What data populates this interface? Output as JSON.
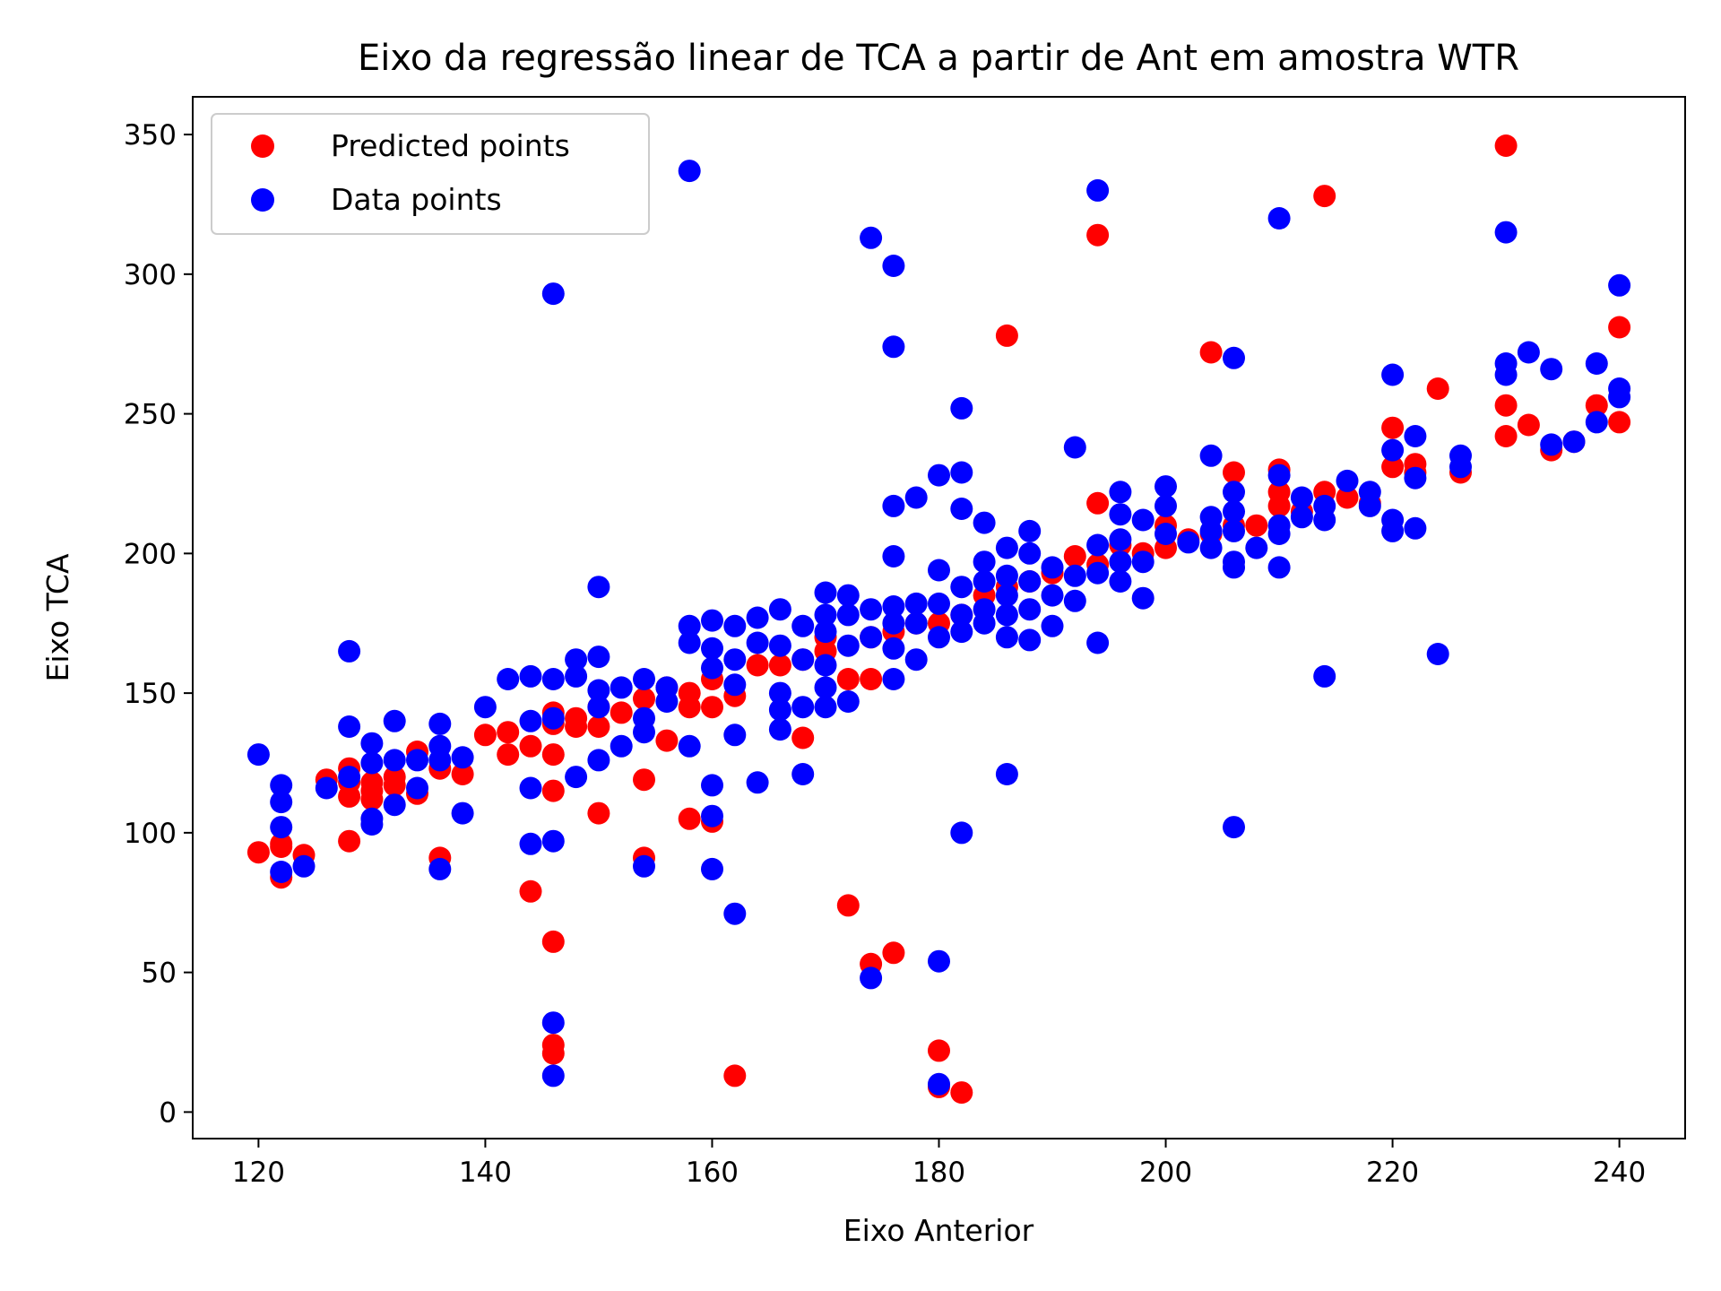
{
  "chart_data": {
    "type": "scatter",
    "title": "Eixo da regressão linear de TCA a partir de Ant em amostra WTR",
    "xlabel": "Eixo Anterior",
    "ylabel": "Eixo TCA",
    "xlim": [
      114.2,
      245.8
    ],
    "ylim": [
      -9.5,
      363.5
    ],
    "xticks": [
      120,
      140,
      160,
      180,
      200,
      220,
      240
    ],
    "yticks": [
      0,
      50,
      100,
      150,
      200,
      250,
      300,
      350
    ],
    "xtick_labels": [
      "120",
      "140",
      "160",
      "180",
      "200",
      "220",
      "240"
    ],
    "ytick_labels": [
      "0",
      "50",
      "100",
      "150",
      "200",
      "250",
      "300",
      "350"
    ],
    "grid": false,
    "legend": {
      "position": "top-left",
      "entries": [
        {
          "label": "Predicted points",
          "color": "#ff0000"
        },
        {
          "label": "Data points",
          "color": "#0000ff"
        }
      ]
    },
    "series": [
      {
        "name": "Predicted points",
        "color": "#ff0000",
        "points": [
          [
            120,
            93
          ],
          [
            122,
            96
          ],
          [
            122,
            95
          ],
          [
            122,
            84
          ],
          [
            124,
            92
          ],
          [
            126,
            119
          ],
          [
            128,
            97
          ],
          [
            128,
            113
          ],
          [
            128,
            118
          ],
          [
            128,
            123
          ],
          [
            130,
            115
          ],
          [
            130,
            112
          ],
          [
            130,
            118
          ],
          [
            132,
            120
          ],
          [
            132,
            117
          ],
          [
            134,
            114
          ],
          [
            134,
            129
          ],
          [
            136,
            91
          ],
          [
            136,
            123
          ],
          [
            138,
            121
          ],
          [
            140,
            135
          ],
          [
            142,
            128
          ],
          [
            142,
            136
          ],
          [
            144,
            79
          ],
          [
            144,
            131
          ],
          [
            146,
            61
          ],
          [
            146,
            24
          ],
          [
            146,
            21
          ],
          [
            146,
            115
          ],
          [
            146,
            128
          ],
          [
            146,
            143
          ],
          [
            146,
            139
          ],
          [
            148,
            141
          ],
          [
            148,
            138
          ],
          [
            150,
            107
          ],
          [
            150,
            138
          ],
          [
            150,
            145
          ],
          [
            152,
            143
          ],
          [
            154,
            91
          ],
          [
            154,
            119
          ],
          [
            154,
            148
          ],
          [
            156,
            133
          ],
          [
            156,
            152
          ],
          [
            158,
            105
          ],
          [
            158,
            150
          ],
          [
            158,
            145
          ],
          [
            160,
            104
          ],
          [
            160,
            145
          ],
          [
            160,
            155
          ],
          [
            162,
            13
          ],
          [
            162,
            149
          ],
          [
            164,
            160
          ],
          [
            166,
            160
          ],
          [
            168,
            134
          ],
          [
            168,
            162
          ],
          [
            170,
            170
          ],
          [
            170,
            165
          ],
          [
            172,
            74
          ],
          [
            172,
            155
          ],
          [
            174,
            53
          ],
          [
            174,
            155
          ],
          [
            174,
            170
          ],
          [
            176,
            57
          ],
          [
            176,
            172
          ],
          [
            178,
            175
          ],
          [
            180,
            22
          ],
          [
            180,
            9
          ],
          [
            180,
            175
          ],
          [
            182,
            7
          ],
          [
            182,
            178
          ],
          [
            184,
            185
          ],
          [
            186,
            278
          ],
          [
            186,
            188
          ],
          [
            188,
            190
          ],
          [
            190,
            193
          ],
          [
            192,
            199
          ],
          [
            194,
            314
          ],
          [
            194,
            218
          ],
          [
            194,
            196
          ],
          [
            196,
            203
          ],
          [
            198,
            200
          ],
          [
            200,
            202
          ],
          [
            200,
            210
          ],
          [
            202,
            205
          ],
          [
            204,
            272
          ],
          [
            204,
            207
          ],
          [
            206,
            229
          ],
          [
            206,
            210
          ],
          [
            208,
            210
          ],
          [
            210,
            230
          ],
          [
            210,
            222
          ],
          [
            210,
            217
          ],
          [
            212,
            215
          ],
          [
            214,
            328
          ],
          [
            214,
            222
          ],
          [
            216,
            220
          ],
          [
            218,
            218
          ],
          [
            220,
            245
          ],
          [
            220,
            231
          ],
          [
            222,
            232
          ],
          [
            222,
            229
          ],
          [
            224,
            259
          ],
          [
            226,
            229
          ],
          [
            230,
            346
          ],
          [
            230,
            253
          ],
          [
            230,
            242
          ],
          [
            232,
            246
          ],
          [
            234,
            237
          ],
          [
            236,
            240
          ],
          [
            238,
            253
          ],
          [
            240,
            281
          ],
          [
            240,
            247
          ]
        ]
      },
      {
        "name": "Data points",
        "color": "#0000ff",
        "points": [
          [
            120,
            128
          ],
          [
            122,
            117
          ],
          [
            122,
            111
          ],
          [
            122,
            102
          ],
          [
            122,
            86
          ],
          [
            124,
            88
          ],
          [
            126,
            116
          ],
          [
            128,
            165
          ],
          [
            128,
            138
          ],
          [
            128,
            120
          ],
          [
            130,
            132
          ],
          [
            130,
            125
          ],
          [
            130,
            105
          ],
          [
            130,
            103
          ],
          [
            132,
            140
          ],
          [
            132,
            126
          ],
          [
            132,
            110
          ],
          [
            134,
            126
          ],
          [
            134,
            116
          ],
          [
            136,
            139
          ],
          [
            136,
            131
          ],
          [
            136,
            126
          ],
          [
            136,
            87
          ],
          [
            138,
            107
          ],
          [
            138,
            127
          ],
          [
            140,
            145
          ],
          [
            142,
            155
          ],
          [
            144,
            156
          ],
          [
            144,
            140
          ],
          [
            144,
            116
          ],
          [
            144,
            96
          ],
          [
            146,
            293
          ],
          [
            146,
            141
          ],
          [
            146,
            155
          ],
          [
            146,
            97
          ],
          [
            146,
            32
          ],
          [
            146,
            13
          ],
          [
            148,
            162
          ],
          [
            148,
            156
          ],
          [
            148,
            120
          ],
          [
            150,
            188
          ],
          [
            150,
            163
          ],
          [
            150,
            151
          ],
          [
            150,
            145
          ],
          [
            150,
            126
          ],
          [
            152,
            152
          ],
          [
            152,
            131
          ],
          [
            154,
            155
          ],
          [
            154,
            141
          ],
          [
            154,
            136
          ],
          [
            154,
            88
          ],
          [
            156,
            147
          ],
          [
            156,
            152
          ],
          [
            158,
            337
          ],
          [
            158,
            174
          ],
          [
            158,
            168
          ],
          [
            158,
            131
          ],
          [
            160,
            176
          ],
          [
            160,
            166
          ],
          [
            160,
            159
          ],
          [
            160,
            117
          ],
          [
            160,
            106
          ],
          [
            160,
            87
          ],
          [
            162,
            174
          ],
          [
            162,
            162
          ],
          [
            162,
            153
          ],
          [
            162,
            135
          ],
          [
            162,
            71
          ],
          [
            164,
            177
          ],
          [
            164,
            168
          ],
          [
            164,
            118
          ],
          [
            166,
            180
          ],
          [
            166,
            167
          ],
          [
            166,
            150
          ],
          [
            166,
            144
          ],
          [
            166,
            137
          ],
          [
            168,
            174
          ],
          [
            168,
            162
          ],
          [
            168,
            145
          ],
          [
            168,
            121
          ],
          [
            170,
            186
          ],
          [
            170,
            178
          ],
          [
            170,
            172
          ],
          [
            170,
            160
          ],
          [
            170,
            152
          ],
          [
            170,
            145
          ],
          [
            172,
            185
          ],
          [
            172,
            178
          ],
          [
            172,
            167
          ],
          [
            172,
            147
          ],
          [
            174,
            313
          ],
          [
            174,
            180
          ],
          [
            174,
            170
          ],
          [
            174,
            48
          ],
          [
            176,
            303
          ],
          [
            176,
            274
          ],
          [
            176,
            217
          ],
          [
            176,
            199
          ],
          [
            176,
            181
          ],
          [
            176,
            175
          ],
          [
            176,
            166
          ],
          [
            176,
            155
          ],
          [
            178,
            220
          ],
          [
            178,
            182
          ],
          [
            178,
            175
          ],
          [
            178,
            162
          ],
          [
            180,
            228
          ],
          [
            180,
            194
          ],
          [
            180,
            182
          ],
          [
            180,
            170
          ],
          [
            180,
            54
          ],
          [
            180,
            10
          ],
          [
            182,
            252
          ],
          [
            182,
            229
          ],
          [
            182,
            216
          ],
          [
            182,
            188
          ],
          [
            182,
            178
          ],
          [
            182,
            172
          ],
          [
            182,
            100
          ],
          [
            184,
            211
          ],
          [
            184,
            197
          ],
          [
            184,
            190
          ],
          [
            184,
            180
          ],
          [
            184,
            175
          ],
          [
            186,
            202
          ],
          [
            186,
            192
          ],
          [
            186,
            185
          ],
          [
            186,
            178
          ],
          [
            186,
            170
          ],
          [
            186,
            121
          ],
          [
            188,
            208
          ],
          [
            188,
            200
          ],
          [
            188,
            190
          ],
          [
            188,
            180
          ],
          [
            188,
            169
          ],
          [
            190,
            195
          ],
          [
            190,
            185
          ],
          [
            190,
            174
          ],
          [
            192,
            238
          ],
          [
            192,
            192
          ],
          [
            192,
            183
          ],
          [
            194,
            330
          ],
          [
            194,
            203
          ],
          [
            194,
            193
          ],
          [
            194,
            168
          ],
          [
            196,
            222
          ],
          [
            196,
            214
          ],
          [
            196,
            205
          ],
          [
            196,
            197
          ],
          [
            196,
            190
          ],
          [
            198,
            212
          ],
          [
            198,
            197
          ],
          [
            198,
            184
          ],
          [
            200,
            224
          ],
          [
            200,
            217
          ],
          [
            200,
            207
          ],
          [
            202,
            204
          ],
          [
            204,
            235
          ],
          [
            204,
            213
          ],
          [
            204,
            208
          ],
          [
            204,
            202
          ],
          [
            206,
            270
          ],
          [
            206,
            222
          ],
          [
            206,
            215
          ],
          [
            206,
            208
          ],
          [
            206,
            197
          ],
          [
            206,
            195
          ],
          [
            206,
            102
          ],
          [
            208,
            202
          ],
          [
            210,
            320
          ],
          [
            210,
            228
          ],
          [
            210,
            210
          ],
          [
            210,
            207
          ],
          [
            210,
            195
          ],
          [
            212,
            220
          ],
          [
            212,
            213
          ],
          [
            214,
            217
          ],
          [
            214,
            212
          ],
          [
            214,
            156
          ],
          [
            216,
            226
          ],
          [
            218,
            222
          ],
          [
            218,
            217
          ],
          [
            220,
            264
          ],
          [
            220,
            237
          ],
          [
            220,
            212
          ],
          [
            220,
            208
          ],
          [
            222,
            242
          ],
          [
            222,
            227
          ],
          [
            222,
            209
          ],
          [
            224,
            164
          ],
          [
            226,
            235
          ],
          [
            226,
            231
          ],
          [
            230,
            315
          ],
          [
            230,
            268
          ],
          [
            230,
            264
          ],
          [
            232,
            272
          ],
          [
            234,
            239
          ],
          [
            234,
            266
          ],
          [
            236,
            240
          ],
          [
            238,
            268
          ],
          [
            238,
            247
          ],
          [
            240,
            296
          ],
          [
            240,
            259
          ],
          [
            240,
            256
          ]
        ]
      }
    ]
  }
}
